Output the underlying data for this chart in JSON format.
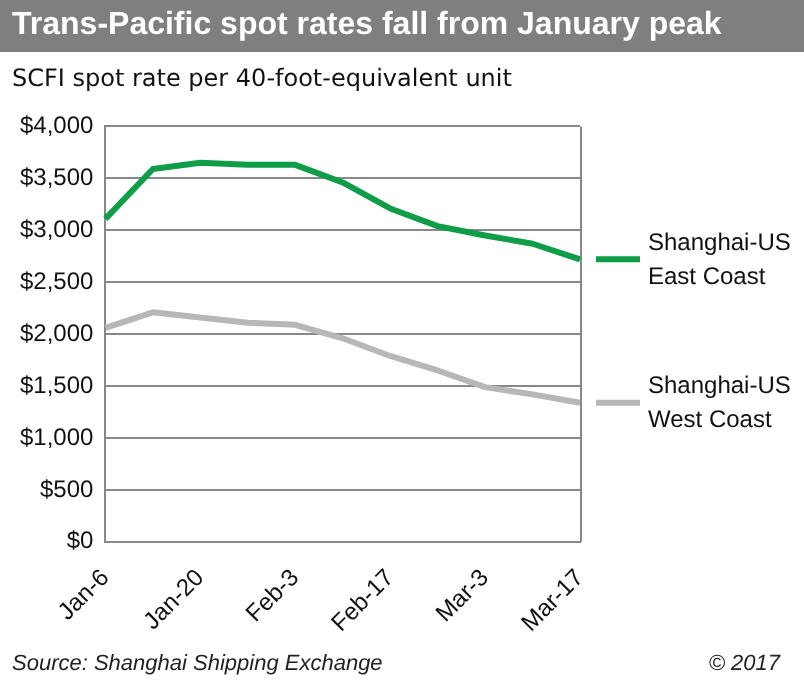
{
  "chart_data": {
    "type": "line",
    "title": "Trans-Pacific spot rates fall from January peak",
    "subtitle": "SCFI spot rate per 40-foot-equivalent unit",
    "categories": [
      "Jan-6",
      null,
      "Jan-20",
      null,
      "Feb-3",
      null,
      "Feb-17",
      null,
      "Mar-3",
      null,
      "Mar-17"
    ],
    "series": [
      {
        "name": "Shanghai-US East Coast",
        "color": "#0f9d48",
        "values": [
          3110,
          3590,
          3650,
          3630,
          3630,
          3460,
          3210,
          3040,
          2950,
          2870,
          2720
        ]
      },
      {
        "name": "Shanghai-US West Coast",
        "color": "#b7b7b7",
        "values": [
          2060,
          2210,
          2160,
          2110,
          2090,
          1960,
          1790,
          1650,
          1490,
          1420,
          1340
        ]
      }
    ],
    "ylim": [
      0,
      4000
    ],
    "yticks": [
      {
        "value": 0,
        "label": "$0"
      },
      {
        "value": 500,
        "label": "$500"
      },
      {
        "value": 1000,
        "label": "$1,000"
      },
      {
        "value": 1500,
        "label": "$1,500"
      },
      {
        "value": 2000,
        "label": "$2,000"
      },
      {
        "value": 2500,
        "label": "$2,500"
      },
      {
        "value": 3000,
        "label": "$3,000"
      },
      {
        "value": 3500,
        "label": "$3,500"
      },
      {
        "value": 4000,
        "label": "$4,000"
      }
    ],
    "grid": "y",
    "legend": "right",
    "marker": "none",
    "line_style": "solid",
    "annotations": [
      "Source: Shanghai Shipping Exchange",
      "© 2017"
    ]
  }
}
